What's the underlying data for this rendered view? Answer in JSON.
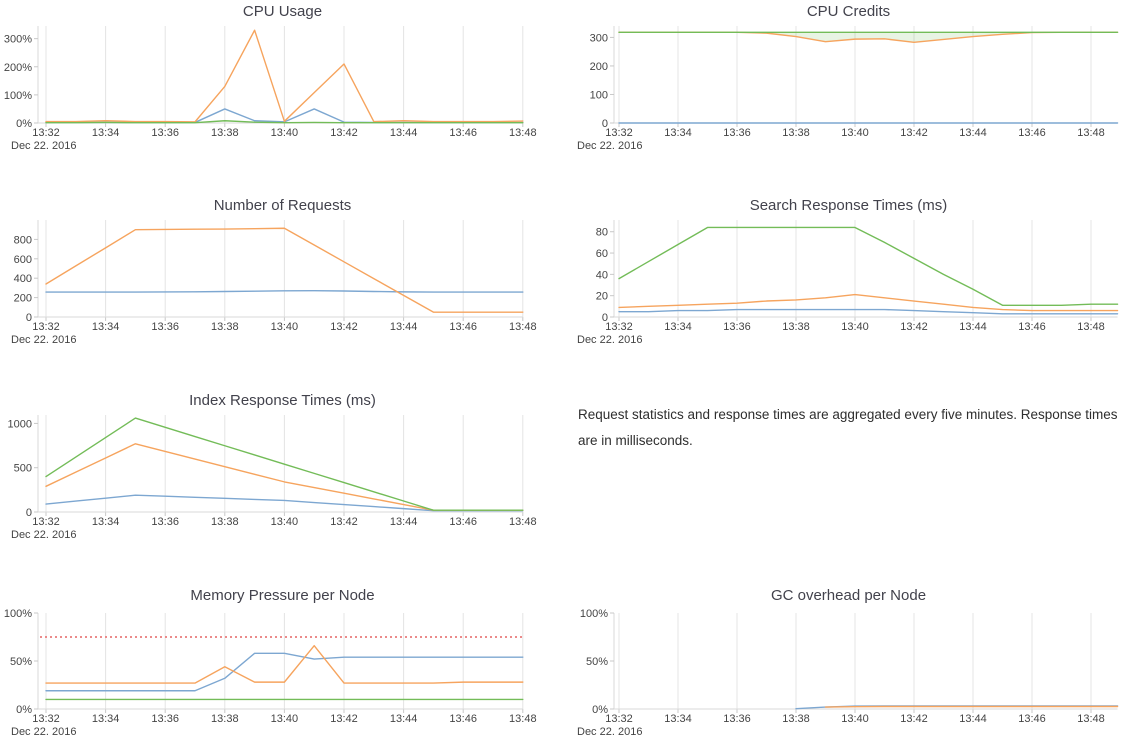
{
  "page": {
    "note": "Request statistics and response times are aggregated every five minutes. Response times are in milliseconds."
  },
  "colors": {
    "blue": "#7DA7D1",
    "orange": "#F6A45E",
    "green": "#73BC58",
    "threshold_red": "#EB8A8A",
    "grid": "#E4E4E4",
    "axis": "#DADADA",
    "tick_mark": "#C8C8C8",
    "tick_text": "#444444",
    "title_text": "#42424C",
    "credits_fill": "rgba(115,188,88,0.16)"
  },
  "chart_data": [
    {
      "type": "line",
      "title": "CPU Usage",
      "date_label": "Dec 22. 2016",
      "x_ticks": [
        "13:32",
        "13:34",
        "13:36",
        "13:38",
        "13:40",
        "13:42",
        "13:44",
        "13:46",
        "13:48"
      ],
      "x_sampling_minutes": 1,
      "y_ticks": {
        "values": [
          0,
          100,
          200,
          300
        ],
        "labels": [
          "0%",
          "100%",
          "200%",
          "300%"
        ]
      },
      "y_range": [
        0,
        345
      ],
      "series": [
        {
          "name": "blue",
          "color": "#7DA7D1",
          "values": [
            2,
            2,
            2,
            2,
            2,
            2,
            50,
            8,
            4,
            50,
            3,
            2,
            2,
            2,
            2,
            2,
            2
          ]
        },
        {
          "name": "orange",
          "color": "#F6A45E",
          "values": [
            5,
            5,
            8,
            5,
            5,
            4,
            130,
            330,
            6,
            108,
            210,
            5,
            8,
            5,
            5,
            5,
            7
          ]
        },
        {
          "name": "green",
          "color": "#73BC58",
          "values": [
            1,
            1,
            2,
            1,
            1,
            1,
            8,
            3,
            1,
            2,
            1,
            1,
            1,
            1,
            1,
            1,
            1
          ]
        }
      ]
    },
    {
      "type": "line",
      "title": "CPU Credits",
      "date_label": "Dec 22. 2016",
      "x_ticks": [
        "13:32",
        "13:34",
        "13:36",
        "13:38",
        "13:40",
        "13:42",
        "13:44",
        "13:46",
        "13:48"
      ],
      "x_sampling_minutes": 1,
      "y_ticks": {
        "values": [
          0,
          100,
          200,
          300
        ],
        "labels": [
          "0",
          "100",
          "200",
          "300"
        ]
      },
      "y_range": [
        0,
        340
      ],
      "fill_between": {
        "upper": "green",
        "lower": "orange",
        "color": "rgba(115,188,88,0.16)"
      },
      "series": [
        {
          "name": "blue",
          "color": "#7DA7D1",
          "values": [
            0,
            0,
            0,
            0,
            0,
            0,
            0,
            0,
            0,
            0,
            0,
            0,
            0,
            0,
            0,
            0,
            0
          ]
        },
        {
          "name": "orange",
          "color": "#F6A45E",
          "values": [
            318,
            318,
            318,
            318,
            318,
            315,
            303,
            285,
            294,
            295,
            283,
            293,
            303,
            311,
            317,
            318,
            318
          ]
        },
        {
          "name": "green",
          "color": "#73BC58",
          "values": [
            318,
            318,
            318,
            318,
            318,
            318,
            318,
            318,
            318,
            318,
            318,
            318,
            318,
            318,
            318,
            318,
            318
          ]
        }
      ]
    },
    {
      "type": "line",
      "title": "Number of Requests",
      "date_label": "Dec 22. 2016",
      "x_ticks": [
        "13:32",
        "13:34",
        "13:36",
        "13:38",
        "13:40",
        "13:42",
        "13:44",
        "13:46",
        "13:48"
      ],
      "x_sampling_minutes": 1,
      "y_ticks": {
        "values": [
          0,
          200,
          400,
          600,
          800
        ],
        "labels": [
          "0",
          "200",
          "400",
          "600",
          "800"
        ]
      },
      "y_range": [
        0,
        1000
      ],
      "series": [
        {
          "name": "blue",
          "color": "#7DA7D1",
          "values": [
            257,
            257,
            257,
            257,
            258,
            260,
            263,
            266,
            270,
            271,
            268,
            263,
            259,
            257,
            257,
            257,
            257
          ]
        },
        {
          "name": "orange",
          "color": "#F6A45E",
          "values": [
            340,
            527,
            713,
            900,
            903,
            905,
            907,
            910,
            915,
            742,
            569,
            396,
            223,
            50,
            50,
            50,
            50
          ]
        }
      ]
    },
    {
      "type": "line",
      "title": "Search Response Times (ms)",
      "date_label": "Dec 22. 2016",
      "x_ticks": [
        "13:32",
        "13:34",
        "13:36",
        "13:38",
        "13:40",
        "13:42",
        "13:44",
        "13:46",
        "13:48"
      ],
      "x_sampling_minutes": 1,
      "y_ticks": {
        "values": [
          0,
          20,
          40,
          60,
          80
        ],
        "labels": [
          "0",
          "20",
          "40",
          "60",
          "80"
        ]
      },
      "y_range": [
        0,
        91
      ],
      "series": [
        {
          "name": "blue",
          "color": "#7DA7D1",
          "values": [
            5,
            5,
            6,
            6,
            7,
            7,
            7,
            7,
            7,
            7,
            6,
            5,
            4,
            3,
            3,
            3,
            3
          ]
        },
        {
          "name": "orange",
          "color": "#F6A45E",
          "values": [
            9,
            10,
            11,
            12,
            13,
            15,
            16,
            18,
            21,
            18,
            15,
            12,
            9,
            7,
            6,
            6,
            6
          ]
        },
        {
          "name": "green",
          "color": "#73BC58",
          "values": [
            36,
            52,
            68,
            84,
            84,
            84,
            84,
            84,
            84,
            70,
            55,
            40,
            26,
            11,
            11,
            11,
            12
          ]
        }
      ]
    },
    {
      "type": "line",
      "title": "Index Response Times (ms)",
      "date_label": "Dec 22. 2016",
      "x_ticks": [
        "13:32",
        "13:34",
        "13:36",
        "13:38",
        "13:40",
        "13:42",
        "13:44",
        "13:46",
        "13:48"
      ],
      "x_sampling_minutes": 1,
      "y_ticks": {
        "values": [
          0,
          500,
          1000
        ],
        "labels": [
          "0",
          "500",
          "1000"
        ]
      },
      "y_range": [
        0,
        1095
      ],
      "series": [
        {
          "name": "blue",
          "color": "#7DA7D1",
          "values": [
            90,
            123,
            156,
            190,
            178,
            166,
            154,
            142,
            130,
            107,
            84,
            61,
            38,
            15,
            15,
            15,
            15
          ]
        },
        {
          "name": "orange",
          "color": "#F6A45E",
          "values": [
            290,
            450,
            610,
            770,
            684,
            598,
            512,
            426,
            340,
            276,
            212,
            148,
            84,
            20,
            20,
            20,
            20
          ]
        },
        {
          "name": "green",
          "color": "#73BC58",
          "values": [
            400,
            620,
            840,
            1060,
            956,
            852,
            748,
            644,
            540,
            436,
            332,
            228,
            124,
            20,
            20,
            20,
            20
          ]
        }
      ]
    },
    {
      "type": "line",
      "title": "Memory Pressure per Node",
      "date_label": "Dec 22. 2016",
      "x_ticks": [
        "13:32",
        "13:34",
        "13:36",
        "13:38",
        "13:40",
        "13:42",
        "13:44",
        "13:46",
        "13:48"
      ],
      "x_sampling_minutes": 1,
      "y_ticks": {
        "values": [
          0,
          50,
          100
        ],
        "labels": [
          "0%",
          "50%",
          "100%"
        ]
      },
      "y_range": [
        0,
        100
      ],
      "threshold": {
        "value": 75,
        "color": "#EB8A8A",
        "style": "dotted"
      },
      "series": [
        {
          "name": "blue",
          "color": "#7DA7D1",
          "values": [
            19,
            19,
            19,
            19,
            19,
            19,
            32,
            58,
            58,
            52,
            54,
            54,
            54,
            54,
            54,
            54,
            54
          ]
        },
        {
          "name": "orange",
          "color": "#F6A45E",
          "values": [
            27,
            27,
            27,
            27,
            27,
            27,
            44,
            28,
            28,
            66,
            27,
            27,
            27,
            27,
            28,
            28,
            28
          ]
        },
        {
          "name": "green",
          "color": "#73BC58",
          "values": [
            10,
            10,
            10,
            10,
            10,
            10,
            10,
            10,
            10,
            10,
            10,
            10,
            10,
            10,
            10,
            10,
            10
          ]
        }
      ]
    },
    {
      "type": "line",
      "title": "GC overhead per Node",
      "date_label": "Dec 22. 2016",
      "x_ticks": [
        "13:32",
        "13:34",
        "13:36",
        "13:38",
        "13:40",
        "13:42",
        "13:44",
        "13:46",
        "13:48"
      ],
      "x_sampling_minutes": 1,
      "y_ticks": {
        "values": [
          0,
          50,
          100
        ],
        "labels": [
          "0%",
          "50%",
          "100%"
        ]
      },
      "y_range": [
        0,
        100
      ],
      "series": [
        {
          "name": "blue",
          "color": "#7DA7D1",
          "values": [
            null,
            null,
            null,
            null,
            null,
            null,
            0.3,
            2,
            3,
            3.2,
            3.2,
            3.2,
            3.2,
            3.2,
            3.2,
            3.2,
            3.2
          ]
        },
        {
          "name": "orange",
          "color": "#F6A45E",
          "values": [
            null,
            null,
            null,
            null,
            null,
            null,
            null,
            2,
            2.4,
            2.6,
            2.6,
            2.6,
            2.6,
            2.6,
            2.6,
            2.6,
            2.6
          ]
        }
      ]
    }
  ]
}
